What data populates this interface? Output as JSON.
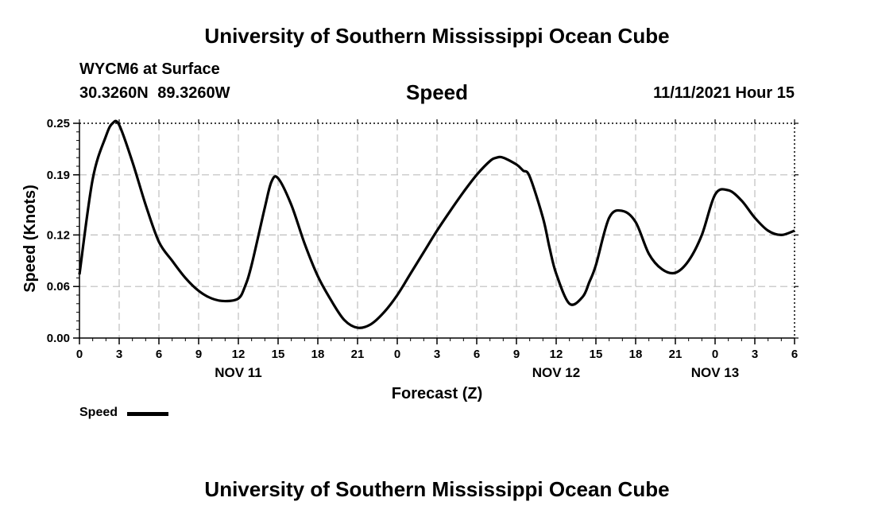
{
  "header": {
    "title": "University of Southern Mississippi Ocean Cube",
    "station": "WYCM6 at Surface",
    "coords": "30.3260N  89.3260W",
    "chart_title": "Speed",
    "datetime": "11/11/2021 Hour 15"
  },
  "footer": {
    "title": "University of Southern Mississippi Ocean Cube"
  },
  "legend": {
    "label": "Speed"
  },
  "chart_data": {
    "type": "line",
    "title": "Speed",
    "xlabel": "Forecast (Z)",
    "ylabel": "Speed (Knots)",
    "ylim": [
      0,
      0.25
    ],
    "xlim": [
      0,
      54
    ],
    "yticks": [
      0.0,
      0.06,
      0.12,
      0.19,
      0.25
    ],
    "ytick_labels": [
      "0.00",
      "0.06",
      "0.12",
      "0.19",
      "0.25"
    ],
    "xtick_labels": [
      "0",
      "3",
      "6",
      "9",
      "12",
      "15",
      "18",
      "21",
      "0",
      "3",
      "6",
      "9",
      "12",
      "15",
      "18",
      "21",
      "0",
      "3",
      "6"
    ],
    "date_labels": [
      {
        "label": "NOV 11",
        "hour_index": 12
      },
      {
        "label": "NOV 12",
        "hour_index": 36
      },
      {
        "label": "NOV 13",
        "hour_index": 48
      }
    ],
    "grid": true,
    "series": [
      {
        "name": "Speed",
        "color": "#000000",
        "x": [
          0,
          1,
          2,
          2.5,
          3,
          4,
          5,
          6,
          7,
          8,
          9,
          10,
          11,
          12,
          12.5,
          13,
          14,
          14.5,
          15,
          16,
          17,
          18,
          19,
          20,
          21,
          22,
          23,
          24,
          25,
          26,
          27,
          28,
          29,
          30,
          31,
          31.5,
          32,
          33,
          33.5,
          34,
          35,
          35.5,
          36,
          37,
          38,
          38.5,
          39,
          40,
          41,
          42,
          43,
          44,
          45,
          46,
          47,
          48,
          49,
          50,
          51,
          52,
          53,
          54
        ],
        "values": [
          0.074,
          0.185,
          0.235,
          0.25,
          0.248,
          0.205,
          0.155,
          0.112,
          0.09,
          0.07,
          0.055,
          0.046,
          0.043,
          0.046,
          0.06,
          0.085,
          0.152,
          0.182,
          0.186,
          0.155,
          0.11,
          0.072,
          0.044,
          0.021,
          0.012,
          0.016,
          0.03,
          0.05,
          0.075,
          0.1,
          0.125,
          0.148,
          0.17,
          0.19,
          0.206,
          0.21,
          0.21,
          0.202,
          0.195,
          0.188,
          0.14,
          0.105,
          0.075,
          0.04,
          0.048,
          0.065,
          0.085,
          0.14,
          0.148,
          0.135,
          0.098,
          0.08,
          0.076,
          0.09,
          0.12,
          0.167,
          0.172,
          0.16,
          0.14,
          0.125,
          0.12,
          0.125
        ]
      }
    ]
  }
}
